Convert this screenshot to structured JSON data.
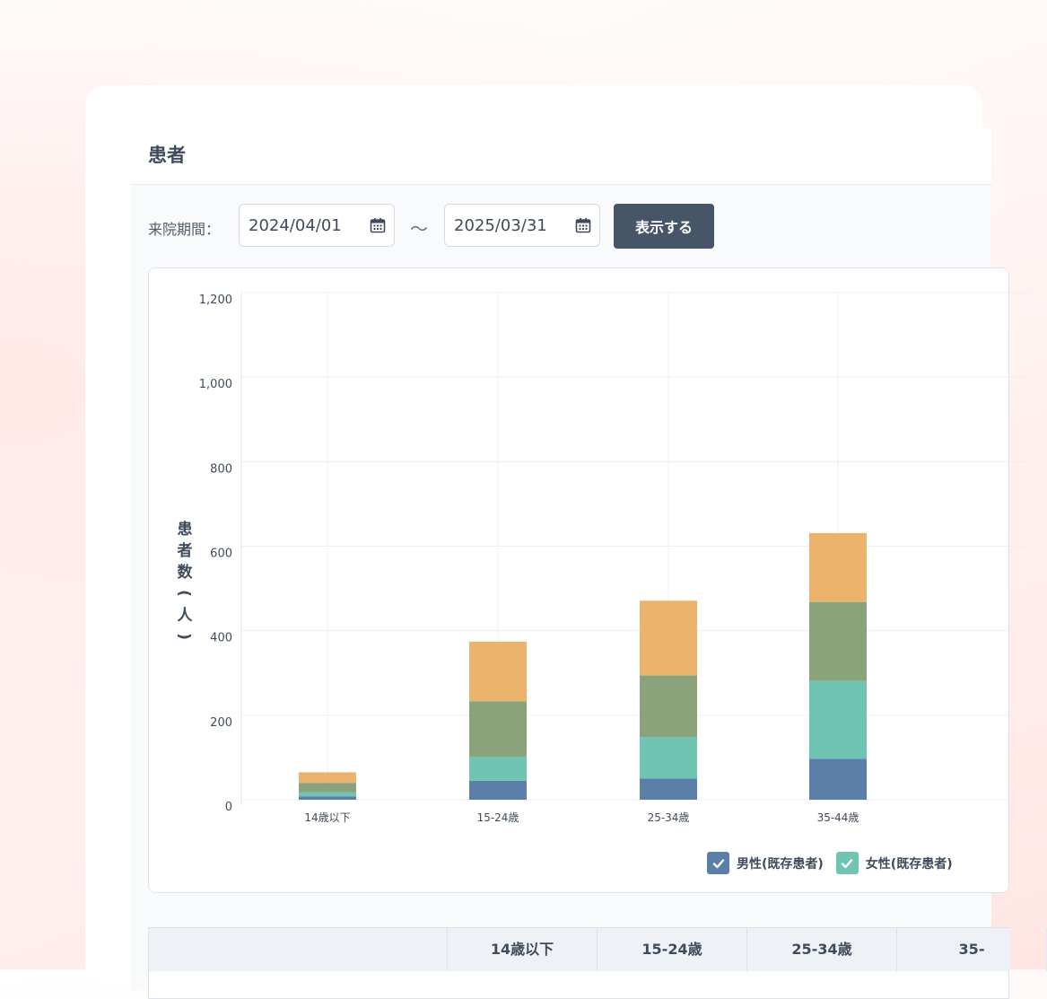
{
  "page": {
    "title": "患者"
  },
  "filter": {
    "label": "来院期間：",
    "start_date": "2024/04/01",
    "separator": "～",
    "end_date": "2025/03/31",
    "submit_label": "表示する",
    "calendar_icon": "calendar-icon"
  },
  "colors": {
    "male_existing": "#5b7fa8",
    "female_existing": "#6fc4b2",
    "series3": "#8aa37a",
    "series4": "#ecb36d",
    "button": "#475569"
  },
  "chart_data": {
    "type": "bar",
    "stacked": true,
    "ylabel": "患者数(人)",
    "ylim": [
      0,
      1200
    ],
    "yticks": [
      0,
      200,
      400,
      600,
      800,
      1000,
      1200
    ],
    "ytick_labels": [
      "0",
      "200",
      "400",
      "600",
      "800",
      "1,000",
      "1,200"
    ],
    "grid": true,
    "categories": [
      "14歳以下",
      "15-24歳",
      "25-34歳",
      "35-44歳"
    ],
    "series": [
      {
        "name": "男性(既存患者)",
        "color": "#5b7fa8",
        "values": [
          8,
          45,
          50,
          97
        ]
      },
      {
        "name": "女性(既存患者)",
        "color": "#6fc4b2",
        "values": [
          10,
          57,
          98,
          184
        ]
      },
      {
        "color": "#8aa37a",
        "values": [
          22,
          131,
          146,
          187
        ]
      },
      {
        "color": "#ecb36d",
        "values": [
          25,
          141,
          177,
          163
        ]
      }
    ],
    "legend_position": "bottom-right"
  },
  "legend": [
    {
      "label": "男性(既存患者)",
      "color": "#5b7fa8"
    },
    {
      "label": "女性(既存患者)",
      "color": "#6fc4b2"
    }
  ],
  "table": {
    "headers": [
      "",
      "14歳以下",
      "15-24歳",
      "25-34歳",
      "35-"
    ]
  }
}
